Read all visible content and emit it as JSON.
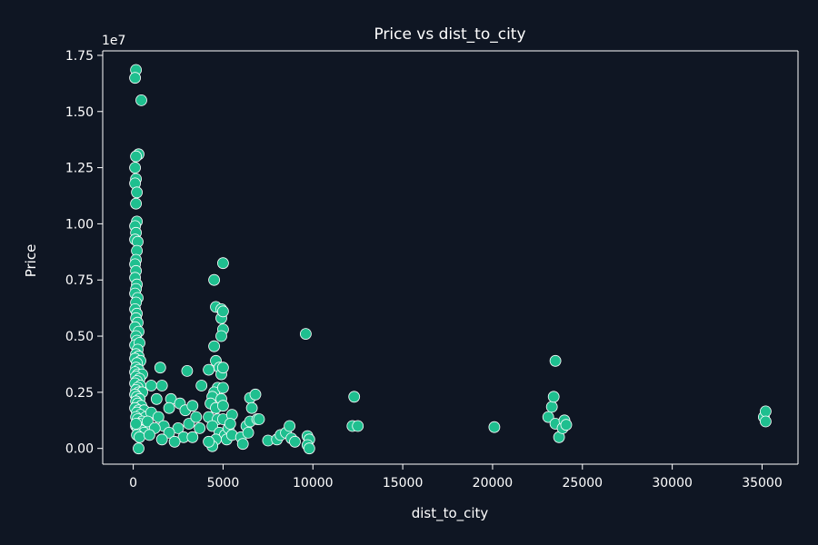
{
  "chart_data": {
    "type": "scatter",
    "title": "Price vs dist_to_city",
    "xlabel": "dist_to_city",
    "ylabel": "Price",
    "y_offset_text": "1e7",
    "xlim": [
      -1700,
      37000
    ],
    "ylim": [
      -0.07,
      1.77
    ],
    "x_ticks": [
      0,
      5000,
      10000,
      15000,
      20000,
      25000,
      30000,
      35000
    ],
    "x_tick_labels": [
      "0",
      "5000",
      "10000",
      "15000",
      "20000",
      "25000",
      "30000",
      "35000"
    ],
    "y_ticks": [
      0.0,
      0.25,
      0.5,
      0.75,
      1.0,
      1.25,
      1.5,
      1.75
    ],
    "y_tick_labels": [
      "0.00",
      "0.25",
      "0.50",
      "0.75",
      "1.00",
      "1.25",
      "1.50",
      "1.75"
    ],
    "grid": false,
    "legend": "none",
    "colors": {
      "background": "#0f1623",
      "marker": "#1fbf8f",
      "marker_edge": "#ffffff",
      "axis": "#ffffff",
      "text": "#ffffff"
    },
    "points": [
      [
        150,
        1.685
      ],
      [
        100,
        1.65
      ],
      [
        450,
        1.55
      ],
      [
        300,
        1.31
      ],
      [
        150,
        1.3
      ],
      [
        100,
        1.25
      ],
      [
        150,
        1.2
      ],
      [
        100,
        1.18
      ],
      [
        200,
        1.14
      ],
      [
        150,
        1.09
      ],
      [
        200,
        1.01
      ],
      [
        100,
        0.99
      ],
      [
        150,
        0.96
      ],
      [
        100,
        0.93
      ],
      [
        250,
        0.92
      ],
      [
        200,
        0.88
      ],
      [
        150,
        0.84
      ],
      [
        100,
        0.82
      ],
      [
        150,
        0.79
      ],
      [
        100,
        0.76
      ],
      [
        200,
        0.73
      ],
      [
        150,
        0.71
      ],
      [
        100,
        0.69
      ],
      [
        250,
        0.67
      ],
      [
        150,
        0.65
      ],
      [
        100,
        0.62
      ],
      [
        200,
        0.6
      ],
      [
        150,
        0.58
      ],
      [
        250,
        0.56
      ],
      [
        100,
        0.54
      ],
      [
        300,
        0.52
      ],
      [
        150,
        0.5
      ],
      [
        200,
        0.48
      ],
      [
        100,
        0.46
      ],
      [
        350,
        0.47
      ],
      [
        250,
        0.44
      ],
      [
        150,
        0.42
      ],
      [
        300,
        0.41
      ],
      [
        100,
        0.4
      ],
      [
        400,
        0.39
      ],
      [
        200,
        0.38
      ],
      [
        150,
        0.36
      ],
      [
        300,
        0.35
      ],
      [
        100,
        0.34
      ],
      [
        250,
        0.33
      ],
      [
        500,
        0.33
      ],
      [
        150,
        0.32
      ],
      [
        350,
        0.31
      ],
      [
        200,
        0.3
      ],
      [
        100,
        0.29
      ],
      [
        400,
        0.28
      ],
      [
        250,
        0.27
      ],
      [
        150,
        0.26
      ],
      [
        300,
        0.25
      ],
      [
        500,
        0.25
      ],
      [
        100,
        0.24
      ],
      [
        200,
        0.23
      ],
      [
        350,
        0.22
      ],
      [
        150,
        0.21
      ],
      [
        250,
        0.2
      ],
      [
        450,
        0.19
      ],
      [
        100,
        0.18
      ],
      [
        300,
        0.17
      ],
      [
        600,
        0.17
      ],
      [
        200,
        0.16
      ],
      [
        400,
        0.15
      ],
      [
        150,
        0.14
      ],
      [
        700,
        0.14
      ],
      [
        250,
        0.13
      ],
      [
        500,
        0.12
      ],
      [
        350,
        0.11
      ],
      [
        150,
        0.1
      ],
      [
        800,
        0.1
      ],
      [
        250,
        0.09
      ],
      [
        450,
        0.08
      ],
      [
        600,
        0.07
      ],
      [
        200,
        0.06
      ],
      [
        350,
        0.05
      ],
      [
        300,
        0.0
      ],
      [
        150,
        0.11
      ],
      [
        1500,
        0.36
      ],
      [
        1000,
        0.28
      ],
      [
        1600,
        0.28
      ],
      [
        1300,
        0.22
      ],
      [
        2100,
        0.22
      ],
      [
        2000,
        0.18
      ],
      [
        2600,
        0.2
      ],
      [
        1000,
        0.16
      ],
      [
        1400,
        0.14
      ],
      [
        2900,
        0.17
      ],
      [
        800,
        0.12
      ],
      [
        1700,
        0.1
      ],
      [
        2500,
        0.09
      ],
      [
        1200,
        0.09
      ],
      [
        3100,
        0.11
      ],
      [
        2000,
        0.07
      ],
      [
        2800,
        0.05
      ],
      [
        900,
        0.06
      ],
      [
        1600,
        0.04
      ],
      [
        3300,
        0.05
      ],
      [
        2300,
        0.03
      ],
      [
        3700,
        0.09
      ],
      [
        3500,
        0.14
      ],
      [
        3300,
        0.19
      ],
      [
        3000,
        0.345
      ],
      [
        3800,
        0.28
      ],
      [
        4200,
        0.35
      ],
      [
        4500,
        0.455
      ],
      [
        4500,
        0.75
      ],
      [
        4600,
        0.63
      ],
      [
        4900,
        0.62
      ],
      [
        4900,
        0.58
      ],
      [
        5000,
        0.61
      ],
      [
        5000,
        0.825
      ],
      [
        5000,
        0.53
      ],
      [
        4900,
        0.5
      ],
      [
        4600,
        0.39
      ],
      [
        4800,
        0.36
      ],
      [
        4900,
        0.33
      ],
      [
        5000,
        0.36
      ],
      [
        4700,
        0.27
      ],
      [
        4500,
        0.25
      ],
      [
        4400,
        0.23
      ],
      [
        4900,
        0.22
      ],
      [
        5000,
        0.27
      ],
      [
        4300,
        0.2
      ],
      [
        4600,
        0.18
      ],
      [
        5000,
        0.19
      ],
      [
        4200,
        0.14
      ],
      [
        4700,
        0.13
      ],
      [
        5000,
        0.13
      ],
      [
        4400,
        0.1
      ],
      [
        4800,
        0.07
      ],
      [
        5100,
        0.06
      ],
      [
        4600,
        0.04
      ],
      [
        4400,
        0.01
      ],
      [
        4200,
        0.03
      ],
      [
        5300,
        0.09
      ],
      [
        5500,
        0.15
      ],
      [
        5400,
        0.11
      ],
      [
        5200,
        0.04
      ],
      [
        5500,
        0.06
      ],
      [
        6000,
        0.05
      ],
      [
        6100,
        0.02
      ],
      [
        6300,
        0.1
      ],
      [
        6500,
        0.12
      ],
      [
        6500,
        0.225
      ],
      [
        6800,
        0.24
      ],
      [
        6600,
        0.18
      ],
      [
        6900,
        0.13
      ],
      [
        6400,
        0.07
      ],
      [
        7000,
        0.13
      ],
      [
        7500,
        0.035
      ],
      [
        8000,
        0.04
      ],
      [
        8200,
        0.06
      ],
      [
        8500,
        0.07
      ],
      [
        8700,
        0.1
      ],
      [
        8800,
        0.045
      ],
      [
        9000,
        0.03
      ],
      [
        9600,
        0.51
      ],
      [
        9700,
        0.055
      ],
      [
        9800,
        0.04
      ],
      [
        9700,
        0.015
      ],
      [
        9800,
        0.0
      ],
      [
        12200,
        0.1
      ],
      [
        12300,
        0.23
      ],
      [
        12500,
        0.1
      ],
      [
        20100,
        0.095
      ],
      [
        23100,
        0.14
      ],
      [
        23300,
        0.185
      ],
      [
        23400,
        0.23
      ],
      [
        23500,
        0.39
      ],
      [
        23500,
        0.11
      ],
      [
        23700,
        0.05
      ],
      [
        23900,
        0.09
      ],
      [
        24000,
        0.125
      ],
      [
        24100,
        0.105
      ],
      [
        35100,
        0.14
      ],
      [
        35200,
        0.165
      ],
      [
        35200,
        0.12
      ]
    ]
  }
}
